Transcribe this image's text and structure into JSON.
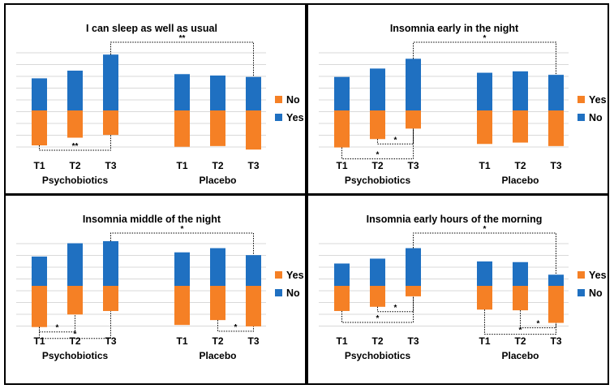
{
  "chart_data": [
    {
      "type": "bar",
      "stacked": "diverging",
      "title": "I can sleep as well as usual",
      "groups": [
        "Psychobiotics",
        "Placebo"
      ],
      "categories": [
        "T1",
        "T2",
        "T3",
        "T1",
        "T2",
        "T3"
      ],
      "series": [
        {
          "name": "Yes",
          "color": "#1f70c1",
          "direction": "up",
          "values": [
            4.6,
            5.7,
            8.0,
            5.2,
            5.0,
            4.8
          ]
        },
        {
          "name": "No",
          "color": "#f58025",
          "direction": "down",
          "values": [
            5.0,
            3.9,
            3.5,
            5.2,
            5.1,
            5.6
          ]
        }
      ],
      "legend": [
        "No",
        "Yes"
      ],
      "legend_position": "right",
      "significance": [
        {
          "from": 0,
          "to": 2,
          "label": "**",
          "side": "below"
        },
        {
          "from": 2,
          "to": 5,
          "label": "**",
          "side": "above"
        }
      ]
    },
    {
      "type": "bar",
      "stacked": "diverging",
      "title": "Insomnia early in the night",
      "groups": [
        "Psychobiotics",
        "Placebo"
      ],
      "categories": [
        "T1",
        "T2",
        "T3",
        "T1",
        "T2",
        "T3"
      ],
      "series": [
        {
          "name": "No",
          "color": "#1f70c1",
          "direction": "up",
          "values": [
            4.8,
            6.0,
            7.4,
            5.4,
            5.6,
            5.1
          ]
        },
        {
          "name": "Yes",
          "color": "#f58025",
          "direction": "down",
          "values": [
            5.3,
            4.1,
            2.6,
            4.8,
            4.6,
            5.1
          ]
        }
      ],
      "legend": [
        "Yes",
        "No"
      ],
      "legend_position": "right",
      "significance": [
        {
          "from": 1,
          "to": 2,
          "label": "*",
          "side": "below"
        },
        {
          "from": 0,
          "to": 2,
          "label": "*",
          "side": "below"
        },
        {
          "from": 2,
          "to": 5,
          "label": "*",
          "side": "above"
        }
      ]
    },
    {
      "type": "bar",
      "stacked": "diverging",
      "title": "Insomnia middle of the night",
      "groups": [
        "Psychobiotics",
        "Placebo"
      ],
      "categories": [
        "T1",
        "T2",
        "T3",
        "T1",
        "T2",
        "T3"
      ],
      "series": [
        {
          "name": "No",
          "color": "#1f70c1",
          "direction": "up",
          "values": [
            4.2,
            6.1,
            6.4,
            4.8,
            5.4,
            4.4
          ]
        },
        {
          "name": "Yes",
          "color": "#f58025",
          "direction": "down",
          "values": [
            5.9,
            4.1,
            3.6,
            5.6,
            4.9,
            5.8
          ]
        }
      ],
      "legend": [
        "Yes",
        "No"
      ],
      "legend_position": "right",
      "significance": [
        {
          "from": 0,
          "to": 1,
          "label": "*",
          "side": "below"
        },
        {
          "from": 0,
          "to": 2,
          "label": "*",
          "side": "below"
        },
        {
          "from": 4,
          "to": 5,
          "label": "*",
          "side": "below"
        },
        {
          "from": 2,
          "to": 5,
          "label": "*",
          "side": "above"
        }
      ]
    },
    {
      "type": "bar",
      "stacked": "diverging",
      "title": "Insomnia early hours of the morning",
      "groups": [
        "Psychobiotics",
        "Placebo"
      ],
      "categories": [
        "T1",
        "T2",
        "T3",
        "T1",
        "T2",
        "T3"
      ],
      "series": [
        {
          "name": "No",
          "color": "#1f70c1",
          "direction": "up",
          "values": [
            3.2,
            3.9,
            5.4,
            3.5,
            3.4,
            1.6
          ]
        },
        {
          "name": "Yes",
          "color": "#f58025",
          "direction": "down",
          "values": [
            3.6,
            3.0,
            1.5,
            3.4,
            3.5,
            5.3
          ]
        }
      ],
      "legend": [
        "Yes",
        "No"
      ],
      "legend_position": "right",
      "significance": [
        {
          "from": 1,
          "to": 2,
          "label": "*",
          "side": "below"
        },
        {
          "from": 0,
          "to": 2,
          "label": "*",
          "side": "below"
        },
        {
          "from": 4,
          "to": 5,
          "label": "*",
          "side": "below"
        },
        {
          "from": 3,
          "to": 5,
          "label": "*",
          "side": "below"
        },
        {
          "from": 2,
          "to": 5,
          "label": "*",
          "side": "above"
        }
      ]
    }
  ]
}
